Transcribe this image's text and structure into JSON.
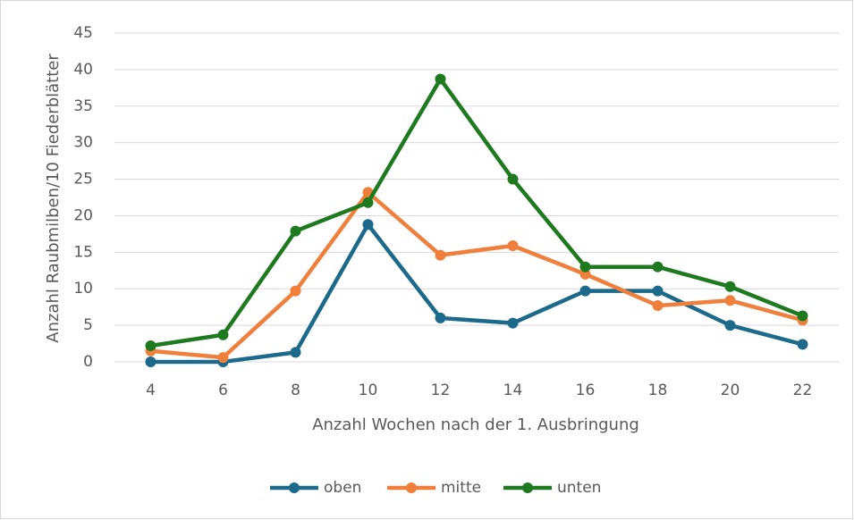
{
  "chart_data": {
    "type": "line",
    "x_label": "Anzahl Wochen nach der 1. Ausbringung",
    "y_label": "Anzahl Raubmilben/10 Fiederblätter",
    "categories": [
      "4",
      "6",
      "8",
      "10",
      "12",
      "14",
      "16",
      "18",
      "20",
      "22"
    ],
    "series": [
      {
        "name": "oben",
        "color": "#1b6a8c",
        "values": [
          0,
          0,
          1.3,
          18.8,
          6,
          5.3,
          9.7,
          9.7,
          5,
          2.4
        ]
      },
      {
        "name": "mitte",
        "color": "#f07f3c",
        "values": [
          1.5,
          0.6,
          9.7,
          23.2,
          14.6,
          15.9,
          12,
          7.7,
          8.4,
          5.7
        ]
      },
      {
        "name": "unten",
        "color": "#1e7a1e",
        "values": [
          2.2,
          3.7,
          17.9,
          21.8,
          38.7,
          25,
          13,
          13,
          10.3,
          6.3
        ]
      }
    ],
    "ylim": [
      0,
      45
    ],
    "yticks": [
      0,
      5,
      10,
      15,
      20,
      25,
      30,
      35,
      40,
      45
    ],
    "grid": true,
    "legend": "bottom"
  }
}
